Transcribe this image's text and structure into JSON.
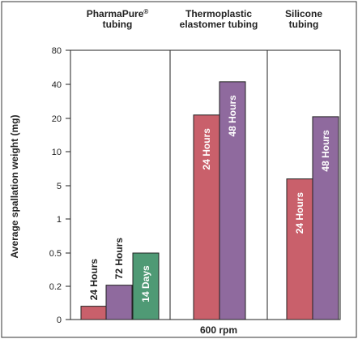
{
  "chart_data": {
    "type": "bar",
    "xlabel": "600 rpm",
    "ylabel": "Average spallation weight (mg)",
    "y_ticks": [
      "0",
      "0.2",
      "0.5",
      "1",
      "5",
      "10",
      "20",
      "40",
      "80"
    ],
    "y_scale": "nonlinear (categorical tick spacing)",
    "grid": false,
    "groups": [
      {
        "label_lines": [
          "PharmaPure®",
          "tubing"
        ],
        "bars": [
          {
            "label": "24 Hours",
            "value": 0.08,
            "color": "#c9606b"
          },
          {
            "label": "72 Hours",
            "value": 0.21,
            "color": "#8f6a9e"
          },
          {
            "label": "14 Days",
            "value": 0.5,
            "color": "#4f9a75"
          }
        ]
      },
      {
        "label_lines": [
          "Thermoplastic",
          "elastomer tubing"
        ],
        "bars": [
          {
            "label": "24 Hours",
            "value": 22,
            "color": "#c9606b"
          },
          {
            "label": "48 Hours",
            "value": 43,
            "color": "#8f6a9e"
          }
        ]
      },
      {
        "label_lines": [
          "Silicone",
          "tubing"
        ],
        "bars": [
          {
            "label": "24 Hours",
            "value": 6,
            "color": "#c9606b"
          },
          {
            "label": "48 Hours",
            "value": 21,
            "color": "#8f6a9e"
          }
        ]
      }
    ]
  }
}
